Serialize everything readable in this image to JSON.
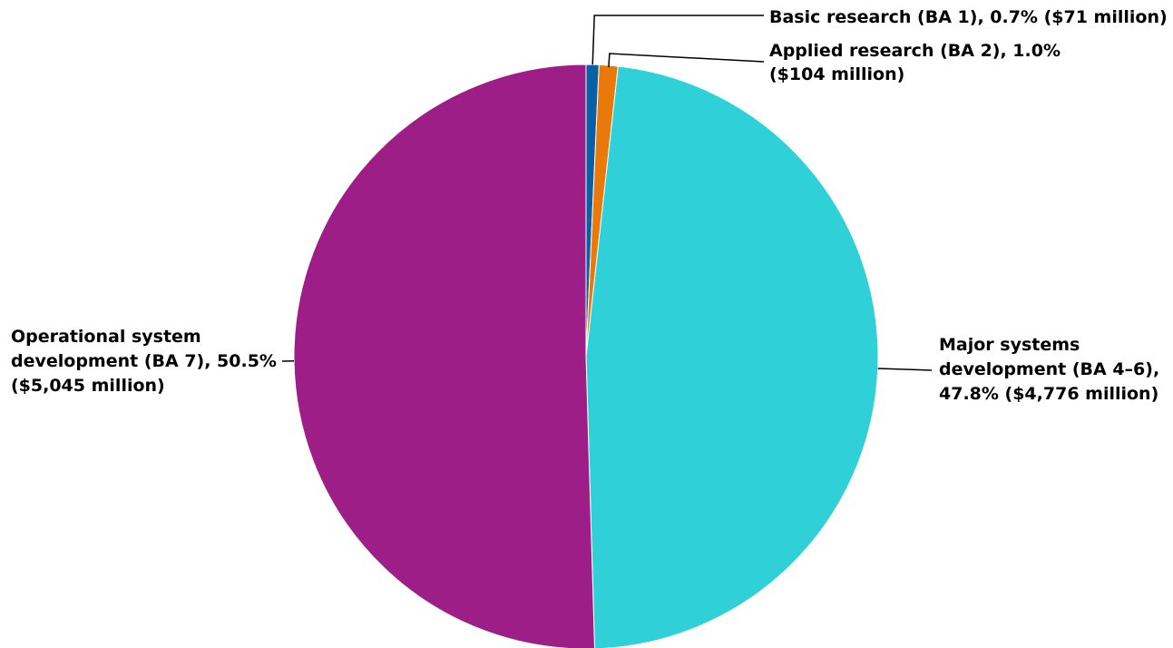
{
  "chart_data": {
    "type": "pie",
    "title": "",
    "units": "million dollars",
    "slices": [
      {
        "label_lines": [
          "Basic research (BA 1), 0.7% ($71 million)"
        ],
        "value": 71,
        "percent": 0.7,
        "color": "#0b5fa5"
      },
      {
        "label_lines": [
          "Applied research (BA 2), 1.0%",
          "($104 million)"
        ],
        "value": 104,
        "percent": 1.0,
        "color": "#e8790a"
      },
      {
        "label_lines": [
          "Major systems",
          "development (BA 4–6),",
          "47.8% ($4,776 million)"
        ],
        "value": 4776,
        "percent": 47.8,
        "color": "#2fd0d8"
      },
      {
        "label_lines": [
          "Operational system",
          "development (BA 7), 50.5%",
          "($5,045 million)"
        ],
        "value": 5045,
        "percent": 50.5,
        "color": "#9c1e86"
      }
    ],
    "start_angle": "12 o'clock",
    "direction": "clockwise",
    "legend": "none (callout labels)"
  }
}
